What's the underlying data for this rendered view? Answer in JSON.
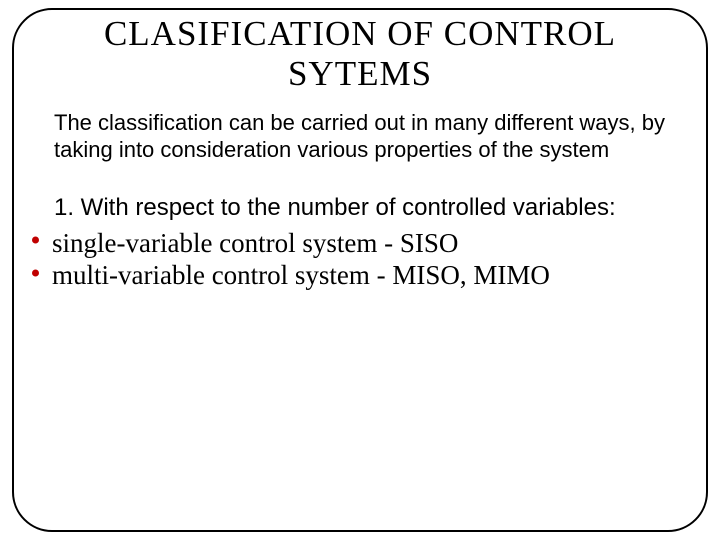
{
  "slide": {
    "title": "CLASIFICATION OF CONTROL SYTEMS",
    "intro": "The classification can be carried out in many different ways, by taking into consideration various properties of the system",
    "section_heading": "1. With respect to the number of controlled variables:",
    "bullets": [
      "single-variable control system  - SISO",
      "multi-variable control system  - MISO, MIMO"
    ],
    "colors": {
      "bullet_dot": "#c00000",
      "border": "#000000",
      "background": "#ffffff",
      "text": "#000000"
    },
    "typography": {
      "title_fontsize": 35,
      "intro_fontsize": 22,
      "section_fontsize": 24,
      "bullet_fontsize": 27,
      "title_family": "Algerian",
      "body_family": "Arial",
      "bullet_family": "Times New Roman"
    },
    "layout": {
      "border_radius": 40,
      "border_width": 2
    }
  }
}
